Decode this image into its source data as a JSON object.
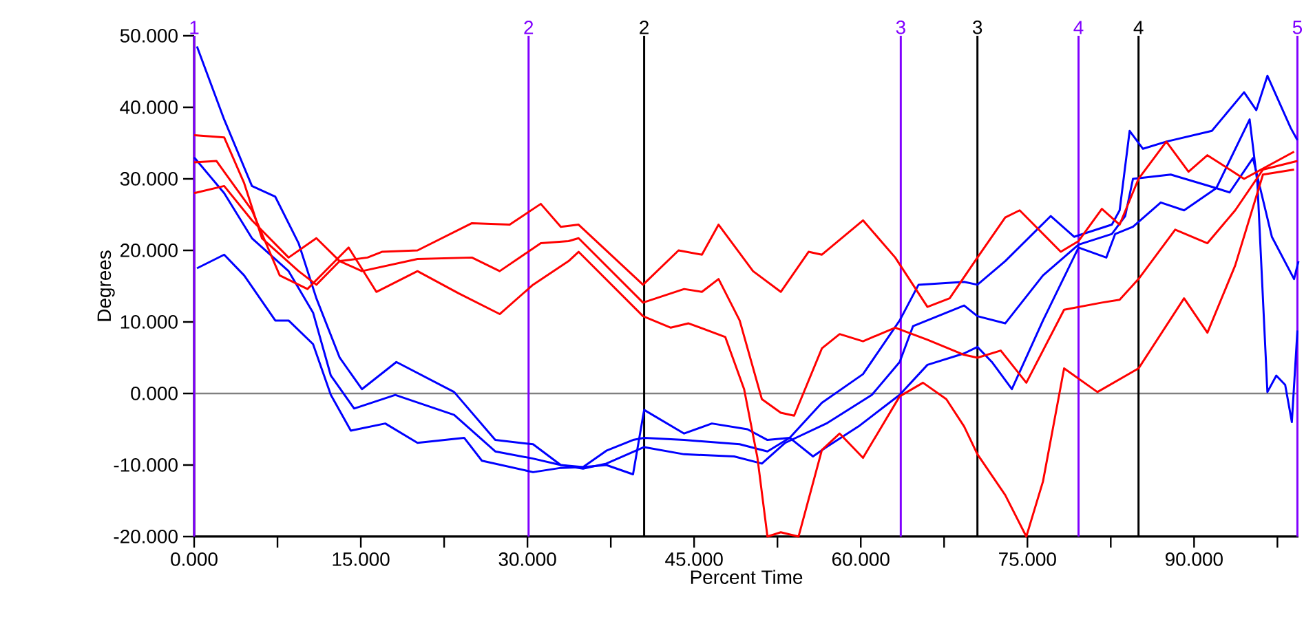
{
  "chart_data": {
    "type": "line",
    "xlabel": "Percent Time",
    "ylabel": "Degrees",
    "xlim": [
      0,
      99.4
    ],
    "ylim": [
      -20,
      50
    ],
    "xticks": [
      {
        "value": 0,
        "label": "0.000"
      },
      {
        "value": 7.5,
        "label": null
      },
      {
        "value": 15,
        "label": "15.000"
      },
      {
        "value": 22.5,
        "label": null
      },
      {
        "value": 30,
        "label": "30.000"
      },
      {
        "value": 37.5,
        "label": null
      },
      {
        "value": 45,
        "label": "45.000"
      },
      {
        "value": 52.5,
        "label": null
      },
      {
        "value": 60,
        "label": "60.000"
      },
      {
        "value": 67.5,
        "label": null
      },
      {
        "value": 75,
        "label": "75.000"
      },
      {
        "value": 82.5,
        "label": null
      },
      {
        "value": 90,
        "label": "90.000"
      },
      {
        "value": 97.5,
        "label": null
      }
    ],
    "yticks": [
      {
        "value": -20,
        "label": "-20.000"
      },
      {
        "value": -10,
        "label": "-10.000"
      },
      {
        "value": 0,
        "label": "0.000"
      },
      {
        "value": 10,
        "label": "10.000"
      },
      {
        "value": 20,
        "label": "20.000"
      },
      {
        "value": 30,
        "label": "30.000"
      },
      {
        "value": 40,
        "label": "40.000"
      },
      {
        "value": 50,
        "label": "50.000"
      }
    ],
    "series": [
      {
        "color": "#0000ff",
        "x": [
          0.25,
          2.7,
          5.2,
          7.3,
          9.4,
          11,
          13.1,
          15.1,
          18.2,
          23.4,
          27.1,
          30.5,
          33,
          35,
          37.1,
          39.5,
          40.5,
          44.1,
          49.1,
          51.6,
          53.6,
          56.5,
          60.2,
          63.5,
          65.2,
          69.3,
          70.5,
          73,
          77.1,
          79.2,
          82.6,
          83.3,
          84.2,
          85.4,
          87.5,
          91.6,
          94.5,
          95.6,
          96.6,
          98.7,
          99.3
        ],
        "values": [
          48.5,
          38.3,
          29,
          27.5,
          21,
          13.3,
          5,
          0.6,
          4.4,
          0.2,
          -6.5,
          -7.1,
          -10,
          -10.3,
          -8,
          -6.5,
          -6.2,
          -6.5,
          -7.1,
          -8.1,
          -6.2,
          -1.3,
          2.7,
          10.2,
          15.2,
          15.6,
          15.2,
          18.5,
          24.8,
          21.9,
          23.6,
          25.6,
          36.7,
          34.2,
          35.2,
          36.7,
          42.1,
          39.6,
          44.4,
          37.1,
          35.4
        ]
      },
      {
        "color": "#0000ff",
        "x": [
          0,
          2.7,
          5.2,
          8.5,
          10.7,
          12.3,
          14.4,
          18.1,
          23.4,
          27.1,
          30.5,
          33,
          35,
          37.1,
          40.5,
          44.1,
          48.6,
          51.1,
          53.2,
          56.9,
          61,
          63.5,
          64.7,
          69.3,
          70.5,
          73,
          76.4,
          79.6,
          82.6,
          83.8,
          84.5,
          87.9,
          92,
          95,
          95.7,
          96.6,
          97.4,
          98.2,
          98.8,
          99.3
        ],
        "values": [
          33,
          28,
          21.7,
          17.1,
          11.3,
          2.5,
          -2.1,
          -0.2,
          -3,
          -8.1,
          -9.1,
          -10,
          -10.5,
          -9.8,
          -7.5,
          -8.5,
          -8.8,
          -9.8,
          -6.9,
          -4.2,
          -0.2,
          4.4,
          9.4,
          12.3,
          10.8,
          9.8,
          16.5,
          20.8,
          22.3,
          24.8,
          30,
          30.6,
          28.7,
          38.3,
          29.4,
          0.2,
          2.5,
          1.2,
          -4,
          8.8
        ]
      },
      {
        "color": "#0000ff",
        "x": [
          0.25,
          2.7,
          4.5,
          7.3,
          8.5,
          10.7,
          12.3,
          14.1,
          17.2,
          20.1,
          24.3,
          25.9,
          30.5,
          33,
          35,
          37.1,
          39.5,
          40.5,
          44.1,
          46.6,
          49.8,
          51.6,
          53.6,
          55.7,
          56.9,
          59.8,
          63.5,
          66,
          69.3,
          70.5,
          71.8,
          73.6,
          76.4,
          79.6,
          82.1,
          82.9,
          84.5,
          87,
          89.1,
          92,
          93.2,
          95.3,
          97,
          99,
          99.4
        ],
        "values": [
          17.5,
          19.4,
          16.5,
          10.2,
          10.2,
          6.9,
          -0.2,
          -5.2,
          -4.2,
          -6.9,
          -6.2,
          -9.4,
          -11,
          -10.4,
          -10.3,
          -10,
          -11.3,
          -2.3,
          -5.6,
          -4.2,
          -5,
          -6.5,
          -6.2,
          -8.8,
          -7.5,
          -4.6,
          -0.2,
          4,
          5.6,
          6.5,
          4.4,
          0.6,
          10.2,
          20.4,
          19,
          22.3,
          23.3,
          26.7,
          25.6,
          28.7,
          28.1,
          32.9,
          21.9,
          16,
          18.5
        ]
      },
      {
        "color": "#ff0000",
        "x": [
          0,
          2.7,
          4.5,
          6.1,
          9.4,
          11,
          13.1,
          15.1,
          20.1,
          25,
          27.5,
          31.2,
          33.7,
          34.6,
          40.4,
          44.1,
          45.7,
          47.2,
          49.1,
          51.1,
          52.8,
          54,
          56.5,
          58.1,
          60.2,
          63.1,
          66,
          69.3,
          70.5,
          72.6,
          74.9,
          78.3,
          81.7,
          83.3,
          85,
          88.3,
          91.2,
          93.7,
          96.2,
          99.3
        ],
        "values": [
          36.1,
          35.8,
          29.4,
          21.7,
          17.1,
          15.2,
          18.5,
          17.1,
          18.8,
          19,
          17.1,
          21,
          21.3,
          21.7,
          12.7,
          14.6,
          14.2,
          16,
          10.2,
          -0.8,
          -2.7,
          -3.1,
          6.3,
          8.3,
          7.3,
          9.2,
          7.5,
          5.4,
          5,
          6,
          1.5,
          11.7,
          12.7,
          13.1,
          16,
          22.9,
          21,
          25.6,
          31.3,
          32.5
        ]
      },
      {
        "color": "#ff0000",
        "x": [
          0,
          2,
          5.2,
          7.7,
          10.2,
          12.3,
          13.9,
          16.4,
          20.1,
          23.8,
          27.5,
          30.5,
          33.7,
          34.6,
          40.4,
          42.9,
          44.5,
          47.8,
          49.5,
          50.7,
          51.6,
          52.8,
          54.4,
          56.5,
          58.1,
          60.2,
          63.5,
          65.6,
          67.7,
          69.3,
          70.5,
          73,
          74.9,
          76.4,
          78.3,
          81.3,
          85,
          89.1,
          91.2,
          93.7,
          96.2,
          99
        ],
        "values": [
          32.3,
          32.5,
          25.6,
          16.5,
          14.6,
          17.9,
          20.4,
          14.2,
          17.1,
          14,
          11.1,
          15.2,
          18.5,
          19.8,
          10.8,
          9.2,
          9.8,
          7.9,
          0.6,
          -9,
          -20,
          -19.4,
          -20,
          -7.9,
          -5.6,
          -9,
          -0.4,
          1.5,
          -0.8,
          -4.6,
          -8.5,
          -14.2,
          -20,
          -12.3,
          3.5,
          0.2,
          3.5,
          13.3,
          8.5,
          17.9,
          30.6,
          31.3
        ]
      },
      {
        "color": "#ff0000",
        "x": [
          0,
          2.7,
          5.2,
          8.5,
          11,
          13.1,
          15.6,
          16.9,
          20.1,
          25,
          28.4,
          31.2,
          33,
          34.6,
          40.4,
          43.6,
          45.7,
          47.2,
          50.3,
          52.8,
          55.3,
          56.5,
          60.2,
          63.1,
          66,
          68,
          70.5,
          73,
          74.3,
          78,
          79.6,
          81.7,
          83.3,
          85,
          87.5,
          89.5,
          91.2,
          94.5,
          99
        ],
        "values": [
          28,
          29,
          24.2,
          19,
          21.7,
          18.5,
          19,
          19.8,
          20,
          23.8,
          23.6,
          26.5,
          23.3,
          23.6,
          15.2,
          20,
          19.4,
          23.6,
          17.1,
          14.2,
          19.8,
          19.4,
          24.2,
          19,
          12.1,
          13.3,
          19,
          24.6,
          25.6,
          19.8,
          21.3,
          25.8,
          23.6,
          30,
          35.2,
          31,
          33.3,
          30,
          33.8
        ]
      }
    ],
    "ref_lines": [
      {
        "axis": "y",
        "value": 0,
        "color": "#808080"
      },
      {
        "axis": "x",
        "value": 0,
        "color": "#8000ff"
      },
      {
        "axis": "x",
        "value": 30.1,
        "color": "#8000ff"
      },
      {
        "axis": "x",
        "value": 40.5,
        "color": "#000000"
      },
      {
        "axis": "x",
        "value": 63.6,
        "color": "#8000ff"
      },
      {
        "axis": "x",
        "value": 70.5,
        "color": "#000000"
      },
      {
        "axis": "x",
        "value": 79.6,
        "color": "#8000ff"
      },
      {
        "axis": "x",
        "value": 85.0,
        "color": "#000000"
      },
      {
        "axis": "x",
        "value": 99.3,
        "color": "#8000ff"
      }
    ],
    "annotations": [
      {
        "text": "1",
        "x": 0,
        "y": 50
      },
      {
        "text": "2",
        "x": 30.1,
        "y": 50
      },
      {
        "text": "2",
        "x": 40.5,
        "y": 50
      },
      {
        "text": "3",
        "x": 63.6,
        "y": 50
      },
      {
        "text": "3",
        "x": 70.5,
        "y": 50
      },
      {
        "text": "4",
        "x": 79.6,
        "y": 50
      },
      {
        "text": "4",
        "x": 85.0,
        "y": 50
      },
      {
        "text": "5",
        "x": 99.3,
        "y": 50
      }
    ]
  }
}
